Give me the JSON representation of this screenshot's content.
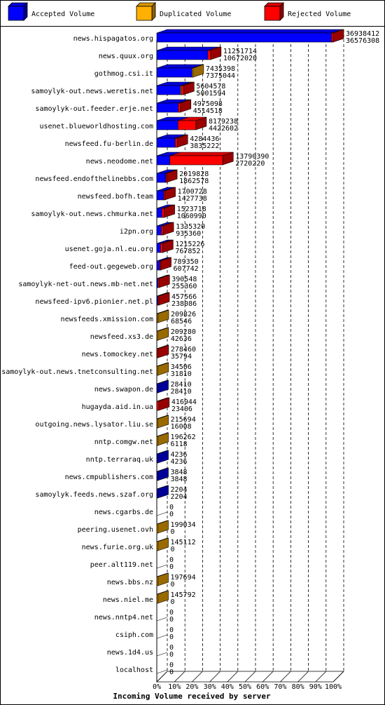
{
  "legend": [
    {
      "label": "Accepted Volume",
      "color": "#0000ff"
    },
    {
      "label": "Duplicated Volume",
      "color": "#ffb000"
    },
    {
      "label": "Rejected Volume",
      "color": "#ff0000"
    }
  ],
  "chart_data": {
    "type": "bar",
    "orientation": "horizontal",
    "stacked": true,
    "style": "3d",
    "xlabel": "Incoming Volume received by server",
    "x_ticks": [
      "0%",
      "10%",
      "20%",
      "30%",
      "40%",
      "50%",
      "60%",
      "70%",
      "80%",
      "90%",
      "100%"
    ],
    "xlim_percent": [
      0,
      100
    ],
    "grid": "vertical dashed",
    "legend_position": "top",
    "series_names": [
      "Accepted Volume",
      "Duplicated Volume",
      "Rejected Volume"
    ],
    "rows": [
      {
        "server": "news.hispagatos.org",
        "total": "36938412",
        "accepted": "36576308",
        "acc_pct": 99.0,
        "dup_pct": 0,
        "rej_pct": 1.0
      },
      {
        "server": "news.quux.org",
        "total": "11251714",
        "accepted": "10672020",
        "acc_pct": 28.9,
        "dup_pct": 0,
        "rej_pct": 1.6
      },
      {
        "server": "gothmog.csi.it",
        "total": "7435398",
        "accepted": "7375044",
        "acc_pct": 20.0,
        "dup_pct": 0.2,
        "rej_pct": 0
      },
      {
        "server": "samoylyk-out.news.weretis.net",
        "total": "5604578",
        "accepted": "5001594",
        "acc_pct": 13.5,
        "dup_pct": 0.5,
        "rej_pct": 1.2
      },
      {
        "server": "samoylyk-out.feeder.erje.net",
        "total": "4975098",
        "accepted": "4514518",
        "acc_pct": 12.2,
        "dup_pct": 0,
        "rej_pct": 1.2
      },
      {
        "server": "usenet.blueworldhosting.com",
        "total": "8179238",
        "accepted": "4422602",
        "acc_pct": 12.0,
        "dup_pct": 0,
        "rej_pct": 10.2
      },
      {
        "server": "newsfeed.fu-berlin.de",
        "total": "4284436",
        "accepted": "3835222",
        "acc_pct": 10.4,
        "dup_pct": 0,
        "rej_pct": 1.2
      },
      {
        "server": "news.neodome.net",
        "total": "13790390",
        "accepted": "2720220",
        "acc_pct": 7.4,
        "dup_pct": 0,
        "rej_pct": 30.0
      },
      {
        "server": "newsfeed.endofthelinebbs.com",
        "total": "2019828",
        "accepted": "1862578",
        "acc_pct": 5.0,
        "dup_pct": 0,
        "rej_pct": 0.4
      },
      {
        "server": "newsfeed.bofh.team",
        "total": "1700728",
        "accepted": "1427738",
        "acc_pct": 3.9,
        "dup_pct": 0,
        "rej_pct": 0.7
      },
      {
        "server": "samoylyk-out.news.chmurka.net",
        "total": "1523718",
        "accepted": "1060990",
        "acc_pct": 2.9,
        "dup_pct": 0,
        "rej_pct": 1.3
      },
      {
        "server": "i2pn.org",
        "total": "1335320",
        "accepted": "935360",
        "acc_pct": 2.5,
        "dup_pct": 0,
        "rej_pct": 1.1
      },
      {
        "server": "usenet.goja.nl.eu.org",
        "total": "1215226",
        "accepted": "767852",
        "acc_pct": 2.1,
        "dup_pct": 0,
        "rej_pct": 1.2
      },
      {
        "server": "feed-out.gegeweb.org",
        "total": "789350",
        "accepted": "607742",
        "acc_pct": 1.6,
        "dup_pct": 0,
        "rej_pct": 0.5
      },
      {
        "server": "samoylyk-net-out.news.mb-net.net",
        "total": "390548",
        "accepted": "255360",
        "acc_pct": 0.7,
        "dup_pct": 0,
        "rej_pct": 0.4
      },
      {
        "server": "newsfeed-ipv6.pionier.net.pl",
        "total": "457566",
        "accepted": "238086",
        "acc_pct": 0.6,
        "dup_pct": 0,
        "rej_pct": 0.6
      },
      {
        "server": "newsfeeds.xmission.com",
        "total": "209826",
        "accepted": "68546",
        "acc_pct": 0.2,
        "dup_pct": 0.4,
        "rej_pct": 0
      },
      {
        "server": "newsfeed.xs3.de",
        "total": "209280",
        "accepted": "42636",
        "acc_pct": 0.1,
        "dup_pct": 0.45,
        "rej_pct": 0
      },
      {
        "server": "news.tomockey.net",
        "total": "278460",
        "accepted": "35794",
        "acc_pct": 0.1,
        "dup_pct": 0,
        "rej_pct": 0.65
      },
      {
        "server": "samoylyk-out.news.tnetconsulting.net",
        "total": "34506",
        "accepted": "31810",
        "acc_pct": 0.09,
        "dup_pct": 0.01,
        "rej_pct": 0
      },
      {
        "server": "news.swapon.de",
        "total": "28410",
        "accepted": "28410",
        "acc_pct": 0.08,
        "dup_pct": 0,
        "rej_pct": 0
      },
      {
        "server": "hugayda.aid.in.ua",
        "total": "416944",
        "accepted": "23406",
        "acc_pct": 0.06,
        "dup_pct": 0,
        "rej_pct": 1.06
      },
      {
        "server": "outgoing.news.lysator.liu.se",
        "total": "215694",
        "accepted": "16008",
        "acc_pct": 0.04,
        "dup_pct": 0.54,
        "rej_pct": 0
      },
      {
        "server": "nntp.comgw.net",
        "total": "196262",
        "accepted": "6118",
        "acc_pct": 0.02,
        "dup_pct": 0.51,
        "rej_pct": 0
      },
      {
        "server": "nntp.terraraq.uk",
        "total": "4236",
        "accepted": "4236",
        "acc_pct": 0.01,
        "dup_pct": 0,
        "rej_pct": 0
      },
      {
        "server": "news.cmpublishers.com",
        "total": "3848",
        "accepted": "3848",
        "acc_pct": 0.01,
        "dup_pct": 0,
        "rej_pct": 0
      },
      {
        "server": "samoylyk.feeds.news.szaf.org",
        "total": "2204",
        "accepted": "2204",
        "acc_pct": 0.01,
        "dup_pct": 0,
        "rej_pct": 0
      },
      {
        "server": "news.cgarbs.de",
        "total": "0",
        "accepted": "0",
        "acc_pct": 0,
        "dup_pct": 0,
        "rej_pct": 0
      },
      {
        "server": "peering.usenet.ovh",
        "total": "199034",
        "accepted": "0",
        "acc_pct": 0,
        "dup_pct": 0.54,
        "rej_pct": 0
      },
      {
        "server": "news.furie.org.uk",
        "total": "145112",
        "accepted": "0",
        "acc_pct": 0,
        "dup_pct": 0.39,
        "rej_pct": 0
      },
      {
        "server": "peer.alt119.net",
        "total": "0",
        "accepted": "0",
        "acc_pct": 0,
        "dup_pct": 0,
        "rej_pct": 0
      },
      {
        "server": "news.bbs.nz",
        "total": "197694",
        "accepted": "0",
        "acc_pct": 0,
        "dup_pct": 0.54,
        "rej_pct": 0
      },
      {
        "server": "news.niel.me",
        "total": "145792",
        "accepted": "0",
        "acc_pct": 0,
        "dup_pct": 0.39,
        "rej_pct": 0
      },
      {
        "server": "news.nntp4.net",
        "total": "0",
        "accepted": "0",
        "acc_pct": 0,
        "dup_pct": 0,
        "rej_pct": 0
      },
      {
        "server": "csiph.com",
        "total": "0",
        "accepted": "0",
        "acc_pct": 0,
        "dup_pct": 0,
        "rej_pct": 0
      },
      {
        "server": "news.1d4.us",
        "total": "0",
        "accepted": "0",
        "acc_pct": 0,
        "dup_pct": 0,
        "rej_pct": 0
      },
      {
        "server": "localhost",
        "total": "0",
        "accepted": "0",
        "acc_pct": 0,
        "dup_pct": 0,
        "rej_pct": 0
      }
    ]
  }
}
